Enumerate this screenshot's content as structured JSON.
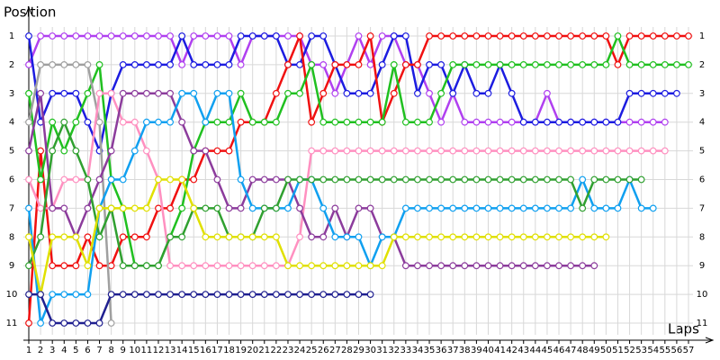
{
  "chart_data": {
    "type": "line",
    "title": "Position",
    "x_label": "Laps",
    "x": [
      1,
      2,
      3,
      4,
      5,
      6,
      7,
      8,
      9,
      10,
      11,
      12,
      13,
      14,
      15,
      16,
      17,
      18,
      19,
      20,
      21,
      22,
      23,
      24,
      25,
      26,
      27,
      28,
      29,
      30,
      31,
      32,
      33,
      34,
      35,
      36,
      37,
      38,
      39,
      40,
      41,
      42,
      43,
      44,
      45,
      46,
      47,
      48,
      49,
      50,
      51,
      52,
      53,
      54,
      55,
      56,
      57
    ],
    "xlim": [
      1,
      57
    ],
    "xticks": [
      1,
      2,
      3,
      4,
      5,
      6,
      7,
      8,
      9,
      10,
      11,
      12,
      13,
      14,
      15,
      16,
      17,
      18,
      19,
      20,
      21,
      22,
      23,
      24,
      25,
      26,
      27,
      28,
      29,
      30,
      31,
      32,
      33,
      34,
      35,
      36,
      37,
      38,
      39,
      40,
      41,
      42,
      43,
      44,
      45,
      46,
      47,
      48,
      49,
      50,
      51,
      52,
      53,
      54,
      55,
      56,
      57
    ],
    "ylim": [
      11,
      1
    ],
    "yticks": [
      1,
      2,
      3,
      4,
      5,
      6,
      7,
      8,
      9,
      10,
      11
    ],
    "grid": true,
    "series": [
      {
        "color": "#b040f0",
        "values": [
          2,
          1,
          1,
          1,
          1,
          1,
          1,
          1,
          1,
          1,
          1,
          1,
          1,
          2,
          1,
          1,
          1,
          1,
          2,
          1,
          1,
          1,
          1,
          1,
          2,
          2,
          3,
          2,
          1,
          2,
          1,
          1,
          2,
          2,
          3,
          4,
          3,
          4,
          4,
          4,
          4,
          4,
          4,
          4,
          3,
          4,
          4,
          4,
          4,
          4,
          4,
          4,
          4,
          4,
          4,
          null,
          null
        ]
      },
      {
        "color": "#1c1ce0",
        "values": [
          1,
          4,
          3,
          3,
          3,
          4,
          5,
          3,
          2,
          2,
          2,
          2,
          2,
          1,
          2,
          2,
          2,
          2,
          1,
          1,
          1,
          1,
          2,
          2,
          1,
          1,
          2,
          3,
          3,
          3,
          2,
          1,
          1,
          3,
          2,
          2,
          3,
          2,
          3,
          3,
          2,
          3,
          4,
          4,
          4,
          4,
          4,
          4,
          4,
          4,
          4,
          3,
          3,
          3,
          3,
          3,
          null
        ]
      },
      {
        "color": "#f01010",
        "values": [
          11,
          5,
          9,
          9,
          9,
          8,
          9,
          9,
          8,
          8,
          8,
          7,
          7,
          6,
          6,
          5,
          5,
          5,
          4,
          4,
          4,
          3,
          2,
          1,
          4,
          3,
          2,
          2,
          2,
          1,
          4,
          3,
          2,
          2,
          1,
          1,
          1,
          1,
          1,
          1,
          1,
          1,
          1,
          1,
          1,
          1,
          1,
          1,
          1,
          1,
          2,
          1,
          1,
          1,
          1,
          1,
          1
        ]
      },
      {
        "color": "#20c020",
        "values": [
          3,
          6,
          4,
          5,
          4,
          3,
          2,
          6,
          7,
          9,
          9,
          9,
          8,
          7,
          5,
          4,
          4,
          4,
          3,
          4,
          4,
          4,
          3,
          3,
          2,
          4,
          4,
          4,
          4,
          4,
          4,
          2,
          4,
          4,
          4,
          3,
          2,
          2,
          2,
          2,
          2,
          2,
          2,
          2,
          2,
          2,
          2,
          2,
          2,
          2,
          1,
          2,
          2,
          2,
          2,
          2,
          2
        ]
      },
      {
        "color": "#a0a0a0",
        "values": [
          4,
          2,
          2,
          2,
          2,
          2,
          4,
          11,
          null,
          null,
          null,
          null,
          null,
          null,
          null,
          null,
          null,
          null,
          null,
          null,
          null,
          null,
          null,
          null,
          null,
          null,
          null,
          null,
          null,
          null,
          null,
          null,
          null,
          null,
          null,
          null,
          null,
          null,
          null,
          null,
          null,
          null,
          null,
          null,
          null,
          null,
          null,
          null,
          null,
          null,
          null,
          null,
          null,
          null,
          null,
          null,
          null
        ]
      },
      {
        "color": "#ff90c0",
        "values": [
          6,
          7,
          7,
          6,
          6,
          6,
          3,
          3,
          4,
          4,
          5,
          6,
          9,
          9,
          9,
          9,
          9,
          9,
          9,
          9,
          9,
          9,
          9,
          8,
          5,
          5,
          5,
          5,
          5,
          5,
          5,
          5,
          5,
          5,
          5,
          5,
          5,
          5,
          5,
          5,
          5,
          5,
          5,
          5,
          5,
          5,
          5,
          5,
          5,
          5,
          5,
          5,
          5,
          5,
          5,
          null,
          null
        ]
      },
      {
        "color": "#8c3c9c",
        "values": [
          5,
          3,
          7,
          7,
          8,
          7,
          6,
          5,
          3,
          3,
          3,
          3,
          3,
          4,
          5,
          5,
          6,
          7,
          7,
          6,
          6,
          6,
          6,
          7,
          8,
          8,
          7,
          8,
          7,
          7,
          8,
          8,
          9,
          9,
          9,
          9,
          9,
          9,
          9,
          9,
          9,
          9,
          9,
          9,
          9,
          9,
          9,
          9,
          9,
          null,
          null,
          null,
          null,
          null,
          null,
          null,
          null
        ]
      },
      {
        "color": "#10a0f0",
        "values": [
          7,
          11,
          10,
          10,
          10,
          10,
          7,
          6,
          6,
          5,
          4,
          4,
          4,
          3,
          3,
          4,
          3,
          3,
          6,
          7,
          7,
          7,
          7,
          6,
          6,
          7,
          8,
          8,
          8,
          9,
          8,
          8,
          7,
          7,
          7,
          7,
          7,
          7,
          7,
          7,
          7,
          7,
          7,
          7,
          7,
          7,
          7,
          6,
          7,
          7,
          7,
          6,
          7,
          7,
          null,
          null,
          null
        ]
      },
      {
        "color": "#30a030",
        "values": [
          9,
          8,
          5,
          4,
          5,
          6,
          8,
          7,
          9,
          9,
          9,
          9,
          8,
          8,
          7,
          7,
          7,
          8,
          8,
          8,
          7,
          7,
          6,
          6,
          6,
          6,
          6,
          6,
          6,
          6,
          6,
          6,
          6,
          6,
          6,
          6,
          6,
          6,
          6,
          6,
          6,
          6,
          6,
          6,
          6,
          6,
          6,
          7,
          6,
          6,
          6,
          6,
          6,
          null,
          null,
          null,
          null
        ]
      },
      {
        "color": "#e0e000",
        "values": [
          8,
          10,
          8,
          8,
          8,
          9,
          7,
          7,
          7,
          7,
          7,
          6,
          6,
          6,
          7,
          8,
          8,
          8,
          8,
          8,
          8,
          8,
          9,
          9,
          9,
          9,
          9,
          9,
          9,
          9,
          9,
          8,
          8,
          8,
          8,
          8,
          8,
          8,
          8,
          8,
          8,
          8,
          8,
          8,
          8,
          8,
          8,
          8,
          8,
          8,
          null,
          null,
          null,
          null,
          null,
          null,
          null
        ]
      },
      {
        "color": "#202090",
        "values": [
          10,
          10,
          11,
          11,
          11,
          11,
          11,
          10,
          10,
          10,
          10,
          10,
          10,
          10,
          10,
          10,
          10,
          10,
          10,
          10,
          10,
          10,
          10,
          10,
          10,
          10,
          10,
          10,
          10,
          10,
          null,
          null,
          null,
          null,
          null,
          null,
          null,
          null,
          null,
          null,
          null,
          null,
          null,
          null,
          null,
          null,
          null,
          null,
          null,
          null,
          null,
          null,
          null,
          null,
          null,
          null,
          null
        ]
      }
    ]
  }
}
